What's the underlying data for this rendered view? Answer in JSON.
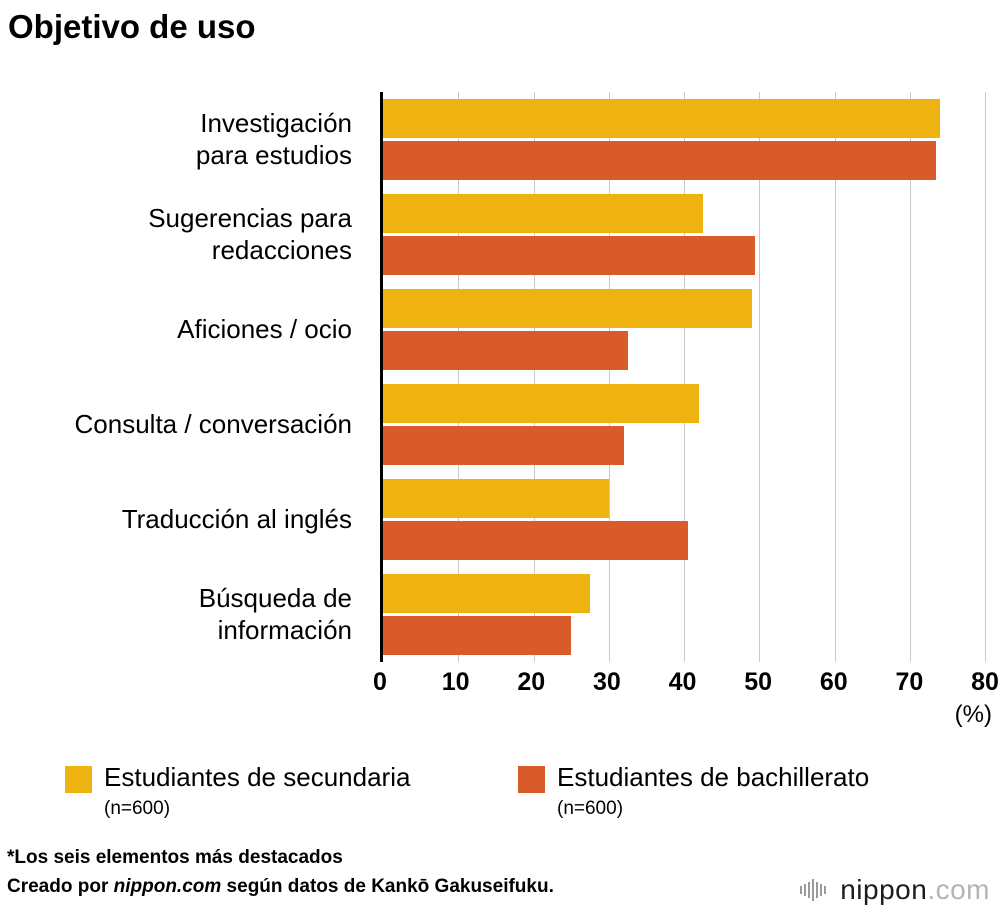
{
  "title": "Objetivo de uso",
  "chart_data": {
    "type": "bar",
    "orientation": "horizontal",
    "title": "Objetivo de uso",
    "categories": [
      "Investigación\npara estudios",
      "Sugerencias para\nredacciones",
      "Aficiones / ocio",
      "Consulta / conversación",
      "Traducción al inglés",
      "Búsqueda de\ninformación"
    ],
    "series": [
      {
        "key": "secundaria",
        "name": "Estudiantes de secundaria",
        "n_label": "(n=600)",
        "color": "#eeb211",
        "values": [
          74.0,
          42.5,
          49.0,
          42.0,
          30.0,
          27.5
        ]
      },
      {
        "key": "bachillerato",
        "name": "Estudiantes de bachillerato",
        "n_label": "(n=600)",
        "color": "#d95b2b",
        "values": [
          73.5,
          49.5,
          32.5,
          32.0,
          40.5,
          25.0
        ]
      }
    ],
    "xlim": [
      0,
      80
    ],
    "xticks": [
      0,
      10,
      20,
      30,
      40,
      50,
      60,
      70,
      80
    ],
    "x_unit_label": "(%)",
    "grid": true,
    "legend_position": "bottom"
  },
  "footnotes": {
    "line1": "*Los seis elementos más destacados",
    "line2_prefix": "Creado por ",
    "line2_source": "nippon.com",
    "line2_suffix": " según datos de Kankō Gakuseifuku."
  },
  "logo": {
    "brand": "nippon",
    "tld": ".com"
  }
}
